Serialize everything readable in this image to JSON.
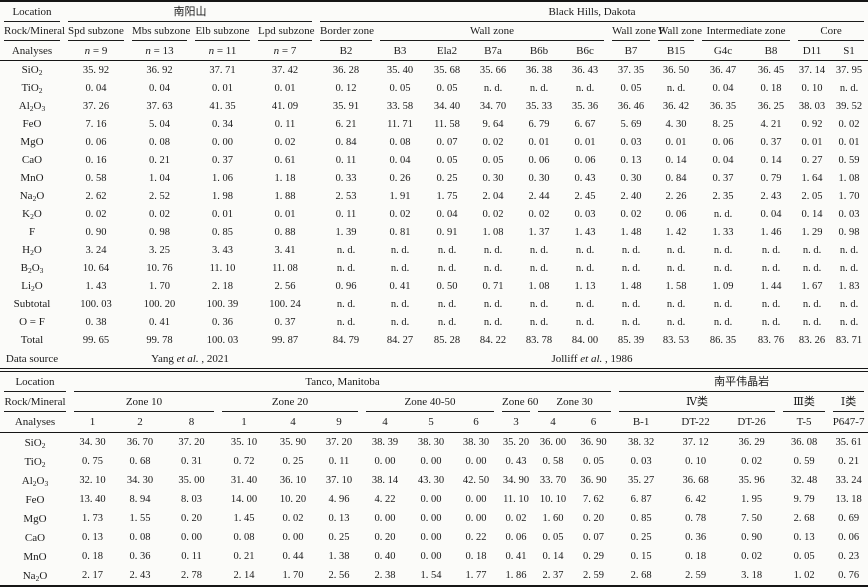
{
  "table1": {
    "header_labels": {
      "location": "Location",
      "rock": "Rock/Mineral",
      "analyses": "Analyses",
      "source": "Data source"
    },
    "locations": [
      {
        "text": "南阳山",
        "span": 4
      },
      {
        "text": "Black Hills, Dakota",
        "span": 12
      }
    ],
    "zones": [
      {
        "text": "Spd subzone",
        "span": 1
      },
      {
        "text": "Mbs subzone",
        "span": 1
      },
      {
        "text": "Elb subzone",
        "span": 1
      },
      {
        "text": "Lpd subzone",
        "span": 1
      },
      {
        "text": "Border zone",
        "span": 1
      },
      {
        "text": "Wall zone",
        "span": 5
      },
      {
        "text": "Wall zone F",
        "span": 1
      },
      {
        "text": "Wall zone",
        "span": 1
      },
      {
        "text": "Intermediate zone",
        "span": 2
      },
      {
        "text": "Core",
        "span": 2
      }
    ],
    "analyses": [
      "n = 9",
      "n = 13",
      "n = 11",
      "n = 7",
      "B2",
      "B3",
      "Ela2",
      "B7a",
      "B6b",
      "B6c",
      "B7",
      "B15",
      "G4c",
      "B8",
      "D11",
      "S1"
    ],
    "rows": [
      {
        "label": [
          "SiO",
          "2"
        ],
        "values": [
          "35. 92",
          "36. 92",
          "37. 71",
          "37. 42",
          "36. 28",
          "35. 40",
          "35. 68",
          "35. 66",
          "36. 38",
          "36. 43",
          "37. 35",
          "36. 50",
          "36. 47",
          "36. 45",
          "37. 14",
          "37. 95"
        ]
      },
      {
        "label": [
          "TiO",
          "2"
        ],
        "values": [
          "0. 04",
          "0. 04",
          "0. 01",
          "0. 01",
          "0. 12",
          "0. 05",
          "0. 05",
          "n. d.",
          "n. d.",
          "n. d.",
          "0. 05",
          "n. d.",
          "0. 04",
          "0. 18",
          "0. 10",
          "n. d."
        ]
      },
      {
        "label": [
          "Al",
          "2",
          "O",
          "3"
        ],
        "values": [
          "37. 26",
          "37. 63",
          "41. 35",
          "41. 09",
          "35. 91",
          "33. 58",
          "34. 40",
          "34. 70",
          "35. 33",
          "35. 36",
          "36. 46",
          "36. 42",
          "36. 35",
          "36. 25",
          "38. 03",
          "39. 52"
        ]
      },
      {
        "label": [
          "FeO"
        ],
        "values": [
          "7. 16",
          "5. 04",
          "0. 34",
          "0. 11",
          "6. 21",
          "11. 71",
          "11. 58",
          "9. 64",
          "6. 79",
          "6. 67",
          "5. 69",
          "4. 30",
          "8. 25",
          "4. 21",
          "0. 92",
          "0. 02"
        ]
      },
      {
        "label": [
          "MgO"
        ],
        "values": [
          "0. 06",
          "0. 08",
          "0. 00",
          "0. 02",
          "0. 84",
          "0. 08",
          "0. 07",
          "0. 02",
          "0. 01",
          "0. 01",
          "0. 03",
          "0. 01",
          "0. 06",
          "0. 37",
          "0. 01",
          "0. 01"
        ]
      },
      {
        "label": [
          "CaO"
        ],
        "values": [
          "0. 16",
          "0. 21",
          "0. 37",
          "0. 61",
          "0. 11",
          "0. 04",
          "0. 05",
          "0. 05",
          "0. 06",
          "0. 06",
          "0. 13",
          "0. 14",
          "0. 04",
          "0. 14",
          "0. 27",
          "0. 59"
        ]
      },
      {
        "label": [
          "MnO"
        ],
        "values": [
          "0. 58",
          "1. 04",
          "1. 06",
          "1. 18",
          "0. 33",
          "0. 26",
          "0. 25",
          "0. 30",
          "0. 30",
          "0. 43",
          "0. 30",
          "0. 84",
          "0. 37",
          "0. 79",
          "1. 64",
          "1. 08"
        ]
      },
      {
        "label": [
          "Na",
          "2",
          "O"
        ],
        "values": [
          "2. 62",
          "2. 52",
          "1. 98",
          "1. 88",
          "2. 53",
          "1. 91",
          "1. 75",
          "2. 04",
          "2. 44",
          "2. 45",
          "2. 40",
          "2. 26",
          "2. 35",
          "2. 43",
          "2. 05",
          "1. 70"
        ]
      },
      {
        "label": [
          "K",
          "2",
          "O"
        ],
        "values": [
          "0. 02",
          "0. 02",
          "0. 01",
          "0. 01",
          "0. 11",
          "0. 02",
          "0. 04",
          "0. 02",
          "0. 02",
          "0. 03",
          "0. 02",
          "0. 06",
          "n. d.",
          "0. 04",
          "0. 14",
          "0. 03"
        ]
      },
      {
        "label": [
          "F"
        ],
        "values": [
          "0. 90",
          "0. 98",
          "0. 85",
          "0. 88",
          "1. 39",
          "0. 81",
          "0. 91",
          "1. 08",
          "1. 37",
          "1. 43",
          "1. 48",
          "1. 42",
          "1. 33",
          "1. 46",
          "1. 29",
          "0. 98"
        ]
      },
      {
        "label": [
          "H",
          "2",
          "O"
        ],
        "values": [
          "3. 24",
          "3. 25",
          "3. 43",
          "3. 41",
          "n. d.",
          "n. d.",
          "n. d.",
          "n. d.",
          "n. d.",
          "n. d.",
          "n. d.",
          "n. d.",
          "n. d.",
          "n. d.",
          "n. d.",
          "n. d."
        ]
      },
      {
        "label": [
          "B",
          "2",
          "O",
          "3"
        ],
        "values": [
          "10. 64",
          "10. 76",
          "11. 10",
          "11. 08",
          "n. d.",
          "n. d.",
          "n. d.",
          "n. d.",
          "n. d.",
          "n. d.",
          "n. d.",
          "n. d.",
          "n. d.",
          "n. d.",
          "n. d.",
          "n. d."
        ]
      },
      {
        "label": [
          "Li",
          "2",
          "O"
        ],
        "values": [
          "1. 43",
          "1. 70",
          "2. 18",
          "2. 56",
          "0. 96",
          "0. 41",
          "0. 50",
          "0. 71",
          "1. 08",
          "1. 13",
          "1. 48",
          "1. 58",
          "1. 09",
          "1. 44",
          "1. 67",
          "1. 83"
        ]
      },
      {
        "label": [
          "Subtotal"
        ],
        "values": [
          "100. 03",
          "100. 20",
          "100. 39",
          "100. 24",
          "n. d.",
          "n. d.",
          "n. d.",
          "n. d.",
          "n. d.",
          "n. d.",
          "n. d.",
          "n. d.",
          "n. d.",
          "n. d.",
          "n. d.",
          "n. d."
        ]
      },
      {
        "label": [
          "O = F"
        ],
        "values": [
          "0. 38",
          "0. 41",
          "0. 36",
          "0. 37",
          "n. d.",
          "n. d.",
          "n. d.",
          "n. d.",
          "n. d.",
          "n. d.",
          "n. d.",
          "n. d.",
          "n. d.",
          "n. d.",
          "n. d.",
          "n. d."
        ]
      },
      {
        "label": [
          "Total"
        ],
        "values": [
          "99. 65",
          "99. 78",
          "100. 03",
          "99. 87",
          "84. 79",
          "84. 27",
          "85. 28",
          "84. 22",
          "83. 78",
          "84. 00",
          "85. 39",
          "83. 53",
          "86. 35",
          "83. 76",
          "83. 26",
          "83. 71"
        ]
      }
    ],
    "sources": [
      {
        "pre": "Yang ",
        "it": "et al.",
        "post": " , 2021",
        "span": 4
      },
      {
        "pre": "Jolliff ",
        "it": "et al.",
        "post": " , 1986",
        "span": 12
      }
    ]
  },
  "table2": {
    "header_labels": {
      "location": "Location",
      "rock": "Rock/Mineral",
      "analyses": "Analyses"
    },
    "locations": [
      {
        "text": "Tanco, Manitoba",
        "span": 12
      },
      {
        "text": "南平伟晶岩",
        "span": 5
      }
    ],
    "zones": [
      {
        "text": "Zone 10",
        "span": 3
      },
      {
        "text": "Zone 20",
        "span": 3
      },
      {
        "text": "Zone 40-50",
        "span": 3
      },
      {
        "text": "Zone 60",
        "span": 1
      },
      {
        "text": "Zone 30",
        "span": 2
      },
      {
        "text": "Ⅳ类",
        "span": 3
      },
      {
        "text": "Ⅲ类",
        "span": 1
      },
      {
        "text": "Ⅰ类",
        "span": 1
      }
    ],
    "analyses": [
      "1",
      "2",
      "8",
      "1",
      "4",
      "9",
      "4",
      "5",
      "6",
      "3",
      "4",
      "6",
      "B-1",
      "DT-22",
      "DT-26",
      "T-5",
      "P647-7"
    ],
    "rows": [
      {
        "label": [
          "SiO",
          "2"
        ],
        "values": [
          "34. 30",
          "36. 70",
          "37. 20",
          "35. 10",
          "35. 90",
          "37. 20",
          "38. 39",
          "38. 30",
          "38. 30",
          "35. 20",
          "36. 00",
          "36. 90",
          "38. 32",
          "37. 12",
          "36. 29",
          "36. 08",
          "35. 61"
        ]
      },
      {
        "label": [
          "TiO",
          "2"
        ],
        "values": [
          "0. 75",
          "0. 68",
          "0. 31",
          "0. 72",
          "0. 25",
          "0. 11",
          "0. 00",
          "0. 00",
          "0. 00",
          "0. 43",
          "0. 58",
          "0. 05",
          "0. 03",
          "0. 10",
          "0. 02",
          "0. 59",
          "0. 21"
        ]
      },
      {
        "label": [
          "Al",
          "2",
          "O",
          "3"
        ],
        "values": [
          "32. 10",
          "34. 30",
          "35. 00",
          "31. 40",
          "36. 10",
          "37. 10",
          "38. 14",
          "43. 30",
          "42. 50",
          "34. 90",
          "33. 70",
          "36. 90",
          "35. 27",
          "36. 68",
          "35. 96",
          "32. 48",
          "33. 24"
        ]
      },
      {
        "label": [
          "FeO"
        ],
        "values": [
          "13. 40",
          "8. 94",
          "8. 03",
          "14. 00",
          "10. 20",
          "4. 96",
          "4. 22",
          "0. 00",
          "0. 00",
          "11. 10",
          "10. 10",
          "7. 62",
          "6. 87",
          "6. 42",
          "1. 95",
          "9. 79",
          "13. 18"
        ]
      },
      {
        "label": [
          "MgO"
        ],
        "values": [
          "1. 73",
          "1. 55",
          "0. 20",
          "1. 45",
          "0. 02",
          "0. 13",
          "0. 00",
          "0. 00",
          "0. 00",
          "0. 02",
          "1. 60",
          "0. 20",
          "0. 85",
          "0. 78",
          "7. 50",
          "2. 68",
          "0. 69"
        ]
      },
      {
        "label": [
          "CaO"
        ],
        "values": [
          "0. 13",
          "0. 08",
          "0. 00",
          "0. 08",
          "0. 00",
          "0. 25",
          "0. 20",
          "0. 00",
          "0. 22",
          "0. 06",
          "0. 05",
          "0. 07",
          "0. 25",
          "0. 36",
          "0. 90",
          "0. 13",
          "0. 06"
        ]
      },
      {
        "label": [
          "MnO"
        ],
        "values": [
          "0. 18",
          "0. 36",
          "0. 11",
          "0. 21",
          "0. 44",
          "1. 38",
          "0. 40",
          "0. 00",
          "0. 18",
          "0. 41",
          "0. 14",
          "0. 29",
          "0. 15",
          "0. 18",
          "0. 02",
          "0. 05",
          "0. 23"
        ]
      },
      {
        "label": [
          "Na",
          "2",
          "O"
        ],
        "values": [
          "2. 17",
          "2. 43",
          "2. 78",
          "2. 14",
          "1. 70",
          "2. 56",
          "2. 38",
          "1. 54",
          "1. 77",
          "1. 86",
          "2. 37",
          "2. 59",
          "2. 68",
          "2. 59",
          "3. 18",
          "1. 02",
          "0. 76"
        ]
      }
    ]
  }
}
